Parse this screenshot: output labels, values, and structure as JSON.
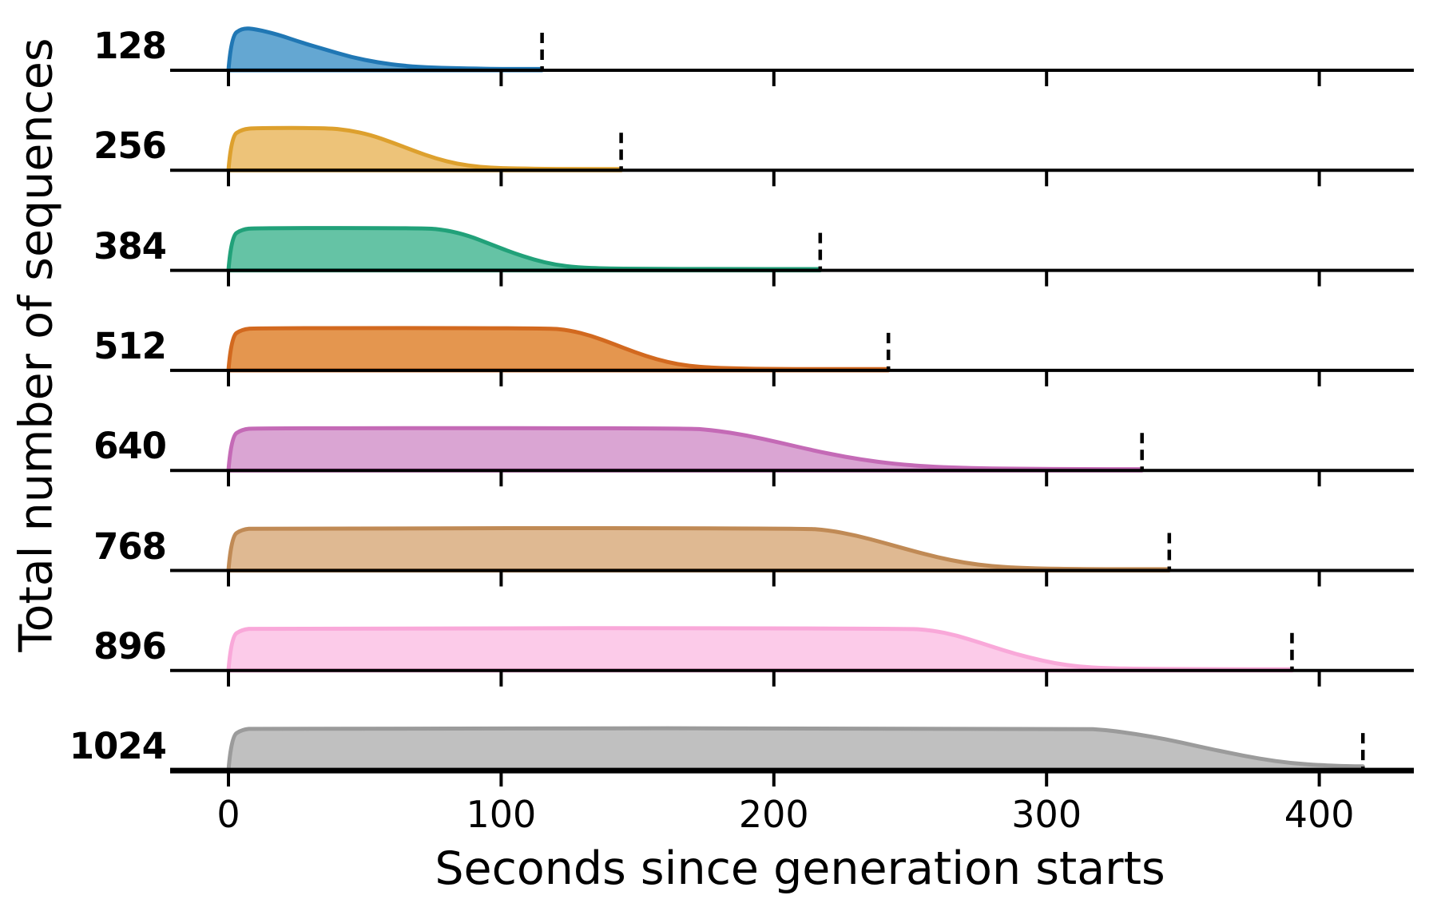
{
  "figure": {
    "xlabel": "Seconds since generation starts",
    "ylabel": "Total number of sequences"
  },
  "chart_data": {
    "type": "area",
    "subtype": "ridgeline-survival",
    "title": "",
    "xlabel": "Seconds since generation starts",
    "ylabel": "Total number of sequences",
    "x_ticks": [
      "0",
      "100",
      "200",
      "300",
      "400"
    ],
    "x_tick_values": [
      0,
      100,
      200,
      300,
      400
    ],
    "xlim": [
      -21,
      434
    ],
    "grid": false,
    "legend_position": "none",
    "marker_style": "dashed-vertical",
    "axis_color": "#000000",
    "series": [
      {
        "label": "128",
        "stroke": "#2077b4",
        "fill": "#64a7d2",
        "marker_x": 115,
        "points": [
          [
            0,
            0
          ],
          [
            1,
            0.8
          ],
          [
            5,
            1
          ],
          [
            10,
            0.97
          ],
          [
            18,
            0.85
          ],
          [
            27,
            0.65
          ],
          [
            35,
            0.5
          ],
          [
            45,
            0.31
          ],
          [
            55,
            0.18
          ],
          [
            65,
            0.1
          ],
          [
            75,
            0.06
          ],
          [
            88,
            0.04
          ],
          [
            100,
            0.03
          ],
          [
            115,
            0.03
          ]
        ]
      },
      {
        "label": "256",
        "stroke": "#dda02d",
        "fill": "#edc379",
        "marker_x": 144,
        "points": [
          [
            0,
            0
          ],
          [
            1,
            0.8
          ],
          [
            5,
            0.97
          ],
          [
            10,
            1
          ],
          [
            36,
            1
          ],
          [
            44,
            0.95
          ],
          [
            52,
            0.84
          ],
          [
            60,
            0.66
          ],
          [
            68,
            0.46
          ],
          [
            76,
            0.28
          ],
          [
            84,
            0.15
          ],
          [
            92,
            0.08
          ],
          [
            100,
            0.05
          ],
          [
            112,
            0.035
          ],
          [
            128,
            0.03
          ],
          [
            144,
            0.03
          ]
        ]
      },
      {
        "label": "384",
        "stroke": "#21a179",
        "fill": "#65c3a5",
        "marker_x": 217,
        "points": [
          [
            0,
            0
          ],
          [
            1,
            0.8
          ],
          [
            5,
            0.97
          ],
          [
            10,
            1
          ],
          [
            72,
            1
          ],
          [
            80,
            0.95
          ],
          [
            88,
            0.82
          ],
          [
            96,
            0.62
          ],
          [
            104,
            0.42
          ],
          [
            112,
            0.25
          ],
          [
            120,
            0.13
          ],
          [
            128,
            0.07
          ],
          [
            138,
            0.045
          ],
          [
            152,
            0.035
          ],
          [
            180,
            0.03
          ],
          [
            217,
            0.03
          ]
        ]
      },
      {
        "label": "512",
        "stroke": "#d2691f",
        "fill": "#e4964f",
        "marker_x": 242,
        "points": [
          [
            0,
            0
          ],
          [
            1,
            0.8
          ],
          [
            5,
            0.97
          ],
          [
            10,
            1
          ],
          [
            117,
            1
          ],
          [
            125,
            0.95
          ],
          [
            133,
            0.82
          ],
          [
            141,
            0.63
          ],
          [
            149,
            0.43
          ],
          [
            157,
            0.26
          ],
          [
            165,
            0.14
          ],
          [
            173,
            0.08
          ],
          [
            183,
            0.05
          ],
          [
            196,
            0.035
          ],
          [
            220,
            0.03
          ],
          [
            242,
            0.03
          ]
        ]
      },
      {
        "label": "640",
        "stroke": "#c46ab6",
        "fill": "#daa5d3",
        "marker_x": 335,
        "points": [
          [
            0,
            0
          ],
          [
            1,
            0.8
          ],
          [
            5,
            0.97
          ],
          [
            10,
            1
          ],
          [
            168,
            1
          ],
          [
            178,
            0.95
          ],
          [
            190,
            0.83
          ],
          [
            202,
            0.66
          ],
          [
            214,
            0.48
          ],
          [
            226,
            0.32
          ],
          [
            238,
            0.2
          ],
          [
            250,
            0.12
          ],
          [
            262,
            0.075
          ],
          [
            276,
            0.05
          ],
          [
            292,
            0.038
          ],
          [
            312,
            0.03
          ],
          [
            335,
            0.03
          ]
        ]
      },
      {
        "label": "768",
        "stroke": "#c08a55",
        "fill": "#dfb992",
        "marker_x": 345,
        "points": [
          [
            0,
            0
          ],
          [
            1,
            0.8
          ],
          [
            5,
            0.97
          ],
          [
            10,
            1
          ],
          [
            210,
            1
          ],
          [
            220,
            0.95
          ],
          [
            230,
            0.83
          ],
          [
            240,
            0.66
          ],
          [
            250,
            0.48
          ],
          [
            260,
            0.31
          ],
          [
            270,
            0.18
          ],
          [
            280,
            0.1
          ],
          [
            290,
            0.06
          ],
          [
            302,
            0.04
          ],
          [
            320,
            0.03
          ],
          [
            345,
            0.03
          ]
        ]
      },
      {
        "label": "896",
        "stroke": "#f9a8d9",
        "fill": "#fccbe9",
        "marker_x": 390,
        "points": [
          [
            0,
            0
          ],
          [
            1,
            0.8
          ],
          [
            5,
            0.97
          ],
          [
            10,
            1
          ],
          [
            248,
            1
          ],
          [
            258,
            0.95
          ],
          [
            267,
            0.83
          ],
          [
            276,
            0.65
          ],
          [
            285,
            0.46
          ],
          [
            294,
            0.3
          ],
          [
            303,
            0.17
          ],
          [
            312,
            0.09
          ],
          [
            322,
            0.055
          ],
          [
            335,
            0.04
          ],
          [
            360,
            0.03
          ],
          [
            390,
            0.03
          ]
        ]
      },
      {
        "label": "1024",
        "stroke": "#9b9b9b",
        "fill": "#c0c0c0",
        "marker_x": 416,
        "points": [
          [
            0,
            0
          ],
          [
            1,
            0.8
          ],
          [
            5,
            0.97
          ],
          [
            10,
            1
          ],
          [
            312,
            1
          ],
          [
            322,
            0.96
          ],
          [
            333,
            0.86
          ],
          [
            344,
            0.74
          ],
          [
            355,
            0.58
          ],
          [
            366,
            0.43
          ],
          [
            378,
            0.28
          ],
          [
            390,
            0.17
          ],
          [
            402,
            0.12
          ],
          [
            410,
            0.105
          ],
          [
            416,
            0.1
          ]
        ]
      }
    ]
  }
}
